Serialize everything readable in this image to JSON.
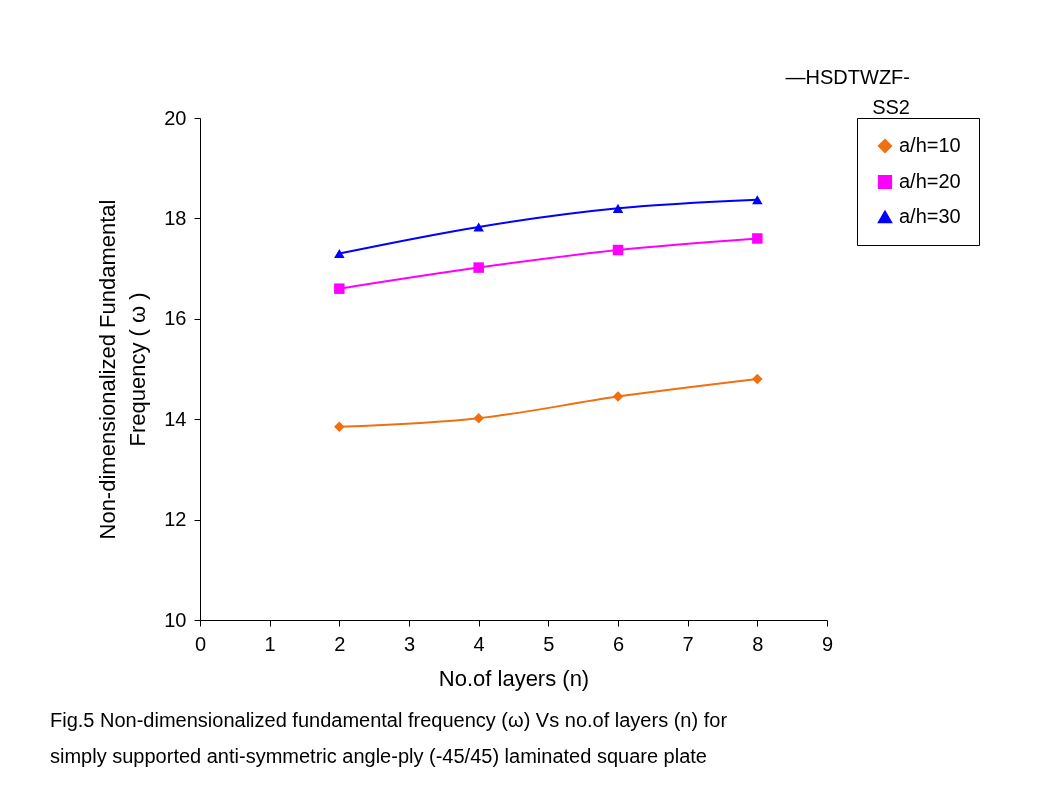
{
  "chart_data": {
    "type": "line",
    "xlabel": "No.of layers (n)",
    "ylabel": "Non-dimensionalized Fundamental Frequency ( ω )",
    "x": [
      2,
      4,
      6,
      8
    ],
    "xlim": [
      0,
      9
    ],
    "xticks": [
      0,
      1,
      2,
      3,
      4,
      5,
      6,
      7,
      8,
      9
    ],
    "ylim": [
      10,
      20
    ],
    "yticks": [
      10,
      12,
      14,
      16,
      18,
      20
    ],
    "grid": false,
    "legend": "right",
    "series": [
      {
        "name": "a/h=10",
        "color": "#f07010",
        "marker": "diamond",
        "values": [
          13.85,
          14.02,
          14.45,
          14.8
        ]
      },
      {
        "name": "a/h=20",
        "color": "#ff00ff",
        "marker": "square",
        "values": [
          16.6,
          17.02,
          17.37,
          17.6
        ]
      },
      {
        "name": "a/h=30",
        "color": "#0000ff",
        "marker": "triangle",
        "values": [
          17.3,
          17.83,
          18.2,
          18.37
        ]
      }
    ],
    "annotations": [
      "—HSDTWZF-\nSS2",
      "Fig.5  Non-dimensionalized fundamental frequency (ω) Vs no.of layers (n) for simply supported anti-symmetric angle-ply (-45/45) laminated square plate"
    ]
  }
}
